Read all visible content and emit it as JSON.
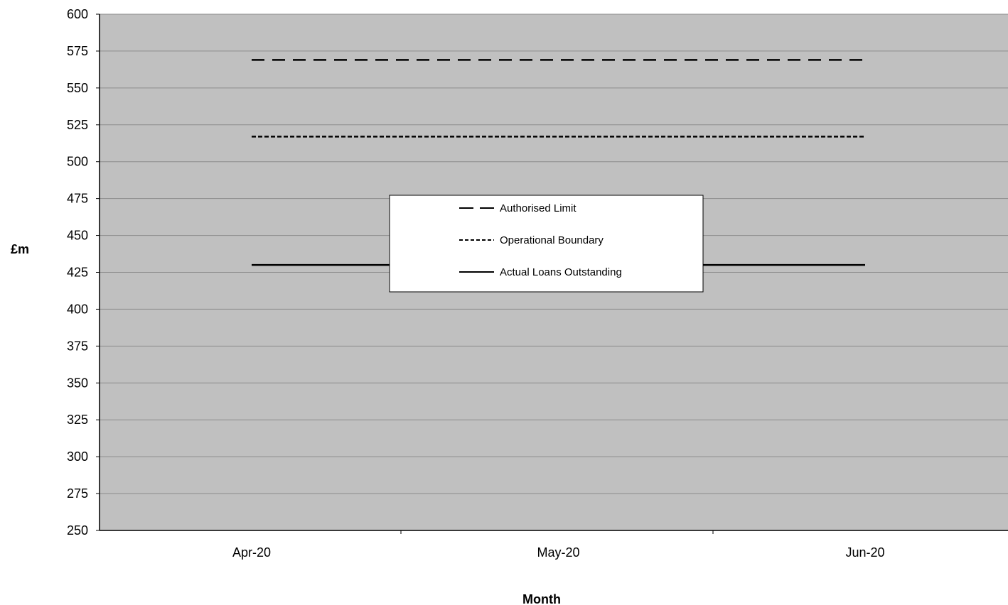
{
  "chart_data": {
    "type": "line",
    "title": "",
    "xlabel": "Month",
    "ylabel": "£m",
    "categories": [
      "Apr-20",
      "May-20",
      "Jun-20"
    ],
    "ylim": [
      250,
      600
    ],
    "yticks": [
      250,
      275,
      300,
      325,
      350,
      375,
      400,
      425,
      450,
      475,
      500,
      525,
      550,
      575,
      600
    ],
    "grid": true,
    "plot_background": "#c0c0c0",
    "legend_position": "center",
    "series": [
      {
        "name": "Authorised Limit",
        "values": [
          569,
          569,
          569
        ],
        "style": "long-dash",
        "color": "#000000"
      },
      {
        "name": "Operational Boundary",
        "values": [
          517,
          517,
          517
        ],
        "style": "short-dash",
        "color": "#000000"
      },
      {
        "name": "Actual Loans Outstanding",
        "values": [
          430,
          430,
          430
        ],
        "style": "solid",
        "color": "#000000"
      }
    ]
  }
}
